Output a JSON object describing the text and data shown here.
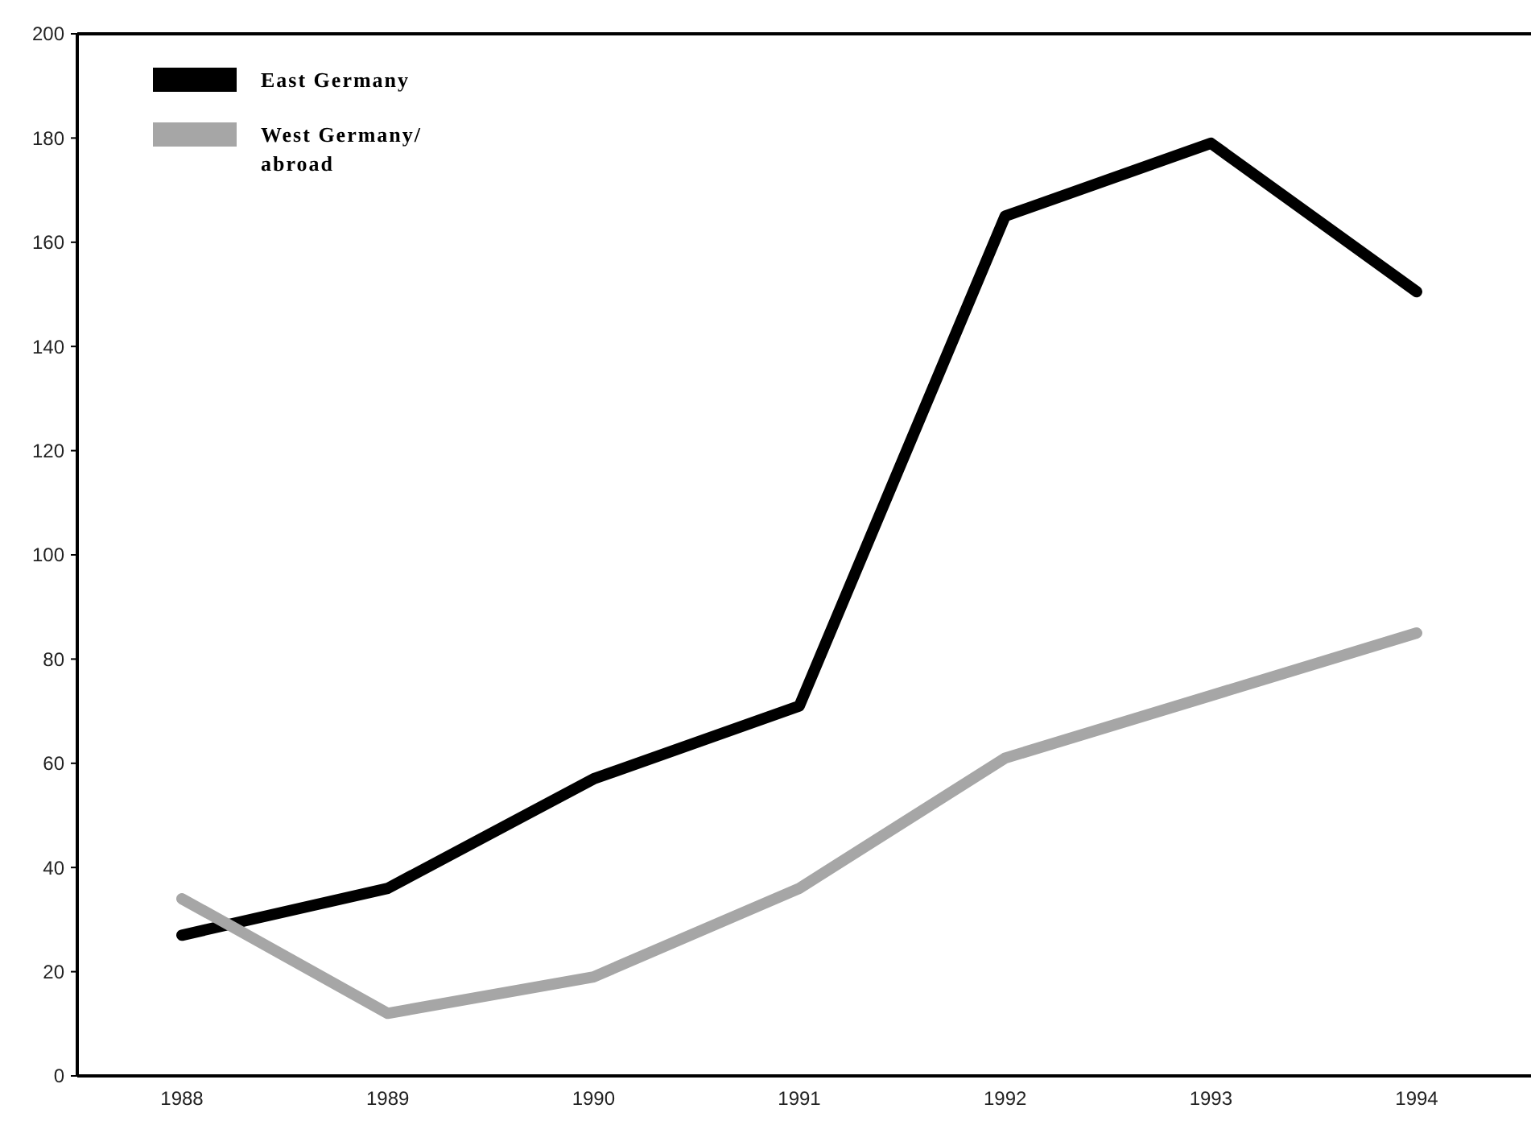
{
  "chart_data": {
    "type": "line",
    "categories": [
      "1988",
      "1989",
      "1990",
      "1991",
      "1992",
      "1993",
      "1994"
    ],
    "series": [
      {
        "name": "East Germany",
        "color": "#000000",
        "values": [
          27,
          36,
          57,
          71,
          165,
          179,
          150.5
        ]
      },
      {
        "name": "West Germany/ abroad",
        "color": "#a6a6a6",
        "values": [
          34,
          12,
          19,
          36,
          61,
          73,
          85
        ]
      }
    ],
    "ylim": [
      0,
      200
    ],
    "yticks": [
      0,
      20,
      40,
      60,
      80,
      100,
      120,
      140,
      160,
      180,
      200
    ],
    "grid": false,
    "legend": "top left",
    "marker": "none",
    "line_style": "solid"
  }
}
